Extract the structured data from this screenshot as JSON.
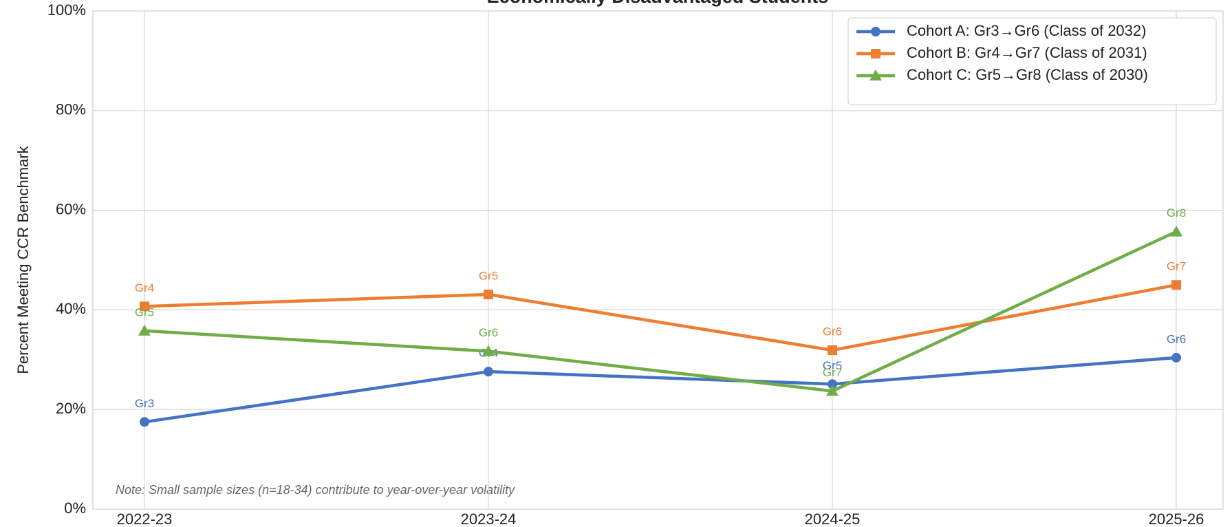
{
  "chart_data": {
    "type": "line",
    "title": "Economically Disadvantaged Students",
    "y_label": "Percent Meeting CCR Benchmark",
    "note": "Note: Small sample sizes (n=18-34) contribute to year-over-year volatility",
    "categories": [
      "2022-23",
      "2023-24",
      "2024-25",
      "2025-26"
    ],
    "ylim": [
      0,
      100
    ],
    "yticks": [
      {
        "value": 0,
        "label": "0%"
      },
      {
        "value": 20,
        "label": "20%"
      },
      {
        "value": 40,
        "label": "40%"
      },
      {
        "value": 60,
        "label": "60%"
      },
      {
        "value": 80,
        "label": "80%"
      },
      {
        "value": 100,
        "label": "100%"
      }
    ],
    "grid": true,
    "legend": "upper right",
    "series": [
      {
        "name": "Cohort A: Gr3→Gr6 (Class of 2032)",
        "color": "#4472c4",
        "marker": "circle",
        "values": [
          17.5,
          27.6,
          25.1,
          30.4
        ],
        "point_labels": [
          "Gr3",
          "Gr4",
          "Gr5",
          "Gr6"
        ]
      },
      {
        "name": "Cohort B: Gr4→Gr7 (Class of 2031)",
        "color": "#ed7d31",
        "marker": "square",
        "values": [
          40.7,
          43.1,
          31.9,
          45.0
        ],
        "point_labels": [
          "Gr4",
          "Gr5",
          "Gr6",
          "Gr7"
        ]
      },
      {
        "name": "Cohort C: Gr5→Gr8 (Class of 2030)",
        "color": "#70ad47",
        "marker": "triangle",
        "values": [
          35.8,
          31.7,
          23.7,
          55.7
        ],
        "point_labels": [
          "Gr5",
          "Gr6",
          "Gr7",
          "Gr8"
        ]
      }
    ]
  }
}
